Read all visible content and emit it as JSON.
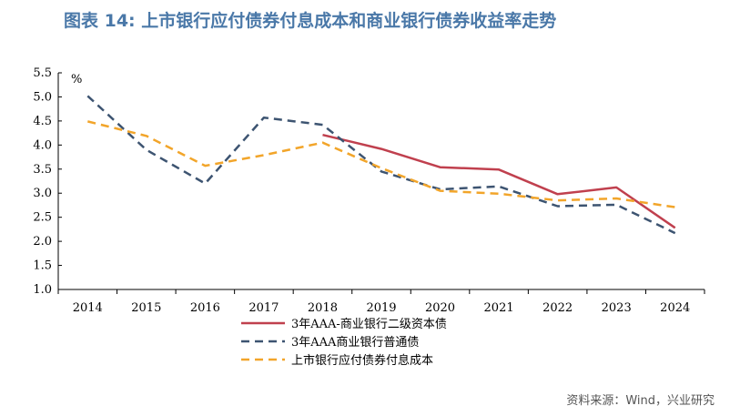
{
  "title": "图表 14: 上市银行应付债券付息成本和商业银行债券收益率走势",
  "source": "资料来源：Wind，兴业研究",
  "chart_data": {
    "type": "line",
    "unit_label": "%",
    "x": [
      "2014",
      "2015",
      "2016",
      "2017",
      "2018",
      "2019",
      "2020",
      "2021",
      "2022",
      "2023",
      "2024"
    ],
    "ylim": [
      1.0,
      5.5
    ],
    "yticks": [
      "5.5",
      "5.0",
      "4.5",
      "4.0",
      "3.5",
      "3.0",
      "2.5",
      "2.0",
      "1.5",
      "1.0"
    ],
    "grid": false,
    "legend_position": "bottom",
    "series": [
      {
        "name": "3年AAA-商业银行二级资本债",
        "color": "#c0404e",
        "dash": "solid",
        "values": [
          null,
          null,
          null,
          null,
          4.21,
          3.92,
          3.54,
          3.49,
          2.98,
          3.12,
          2.28
        ]
      },
      {
        "name": "3年AAA商业银行普通债",
        "color": "#3d5471",
        "dash": "dashed",
        "values": [
          5.02,
          3.9,
          3.2,
          4.57,
          4.42,
          3.45,
          3.08,
          3.14,
          2.73,
          2.76,
          2.17
        ]
      },
      {
        "name": "上市银行应付债券付息成本",
        "color": "#f2a52a",
        "dash": "dashed",
        "values": [
          4.49,
          4.19,
          3.57,
          3.79,
          4.05,
          3.52,
          3.05,
          2.99,
          2.85,
          2.89,
          2.71
        ]
      }
    ]
  }
}
